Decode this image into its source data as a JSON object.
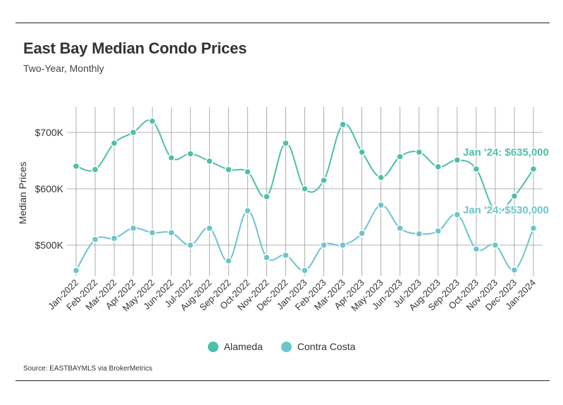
{
  "title": "East Bay Median Condo Prices",
  "subtitle": "Two-Year, Monthly",
  "source": "Source:  EASTBAYMLS via BrokerMetrics",
  "chart_data": {
    "type": "line",
    "ylabel": "Median Prices",
    "xlabel": "",
    "ylim": [
      445000,
      745000
    ],
    "yticks": [
      500000,
      600000,
      700000
    ],
    "ytick_labels": [
      "$500K",
      "$600K",
      "$700K"
    ],
    "grid": true,
    "legend_position": "bottom",
    "categories": [
      "Jan-2022",
      "Feb-2022",
      "Mar-2022",
      "Apr-2022",
      "May-2022",
      "Jun-2022",
      "Jul-2022",
      "Aug-2022",
      "Sep-2022",
      "Oct-2022",
      "Nov-2022",
      "Dec-2022",
      "Jan-2023",
      "Feb-2023",
      "Mar-2023",
      "Apr-2023",
      "May-2023",
      "Jun-2023",
      "Jul-2023",
      "Aug-2023",
      "Sep-2023",
      "Oct-2023",
      "Nov-2023",
      "Dec-2023",
      "Jan-2024"
    ],
    "series": [
      {
        "name": "Alameda",
        "color": "#4dbfa8",
        "values": [
          640000,
          634000,
          681000,
          700000,
          720000,
          655000,
          662000,
          649000,
          634000,
          630000,
          586000,
          681000,
          600000,
          615000,
          714000,
          665000,
          620000,
          657000,
          665000,
          639000,
          651000,
          635000,
          561000,
          587000,
          635000
        ],
        "annotation": "Jan '24: $635,000"
      },
      {
        "name": "Contra Costa",
        "color": "#6cc4cc",
        "values": [
          455000,
          510000,
          512000,
          530000,
          522000,
          522000,
          500000,
          530000,
          472000,
          561000,
          478000,
          482000,
          455000,
          500000,
          500000,
          521000,
          571000,
          530000,
          520000,
          525000,
          554000,
          493000,
          500000,
          456000,
          530000
        ],
        "annotation": "Jan '24: $530,000"
      }
    ]
  }
}
